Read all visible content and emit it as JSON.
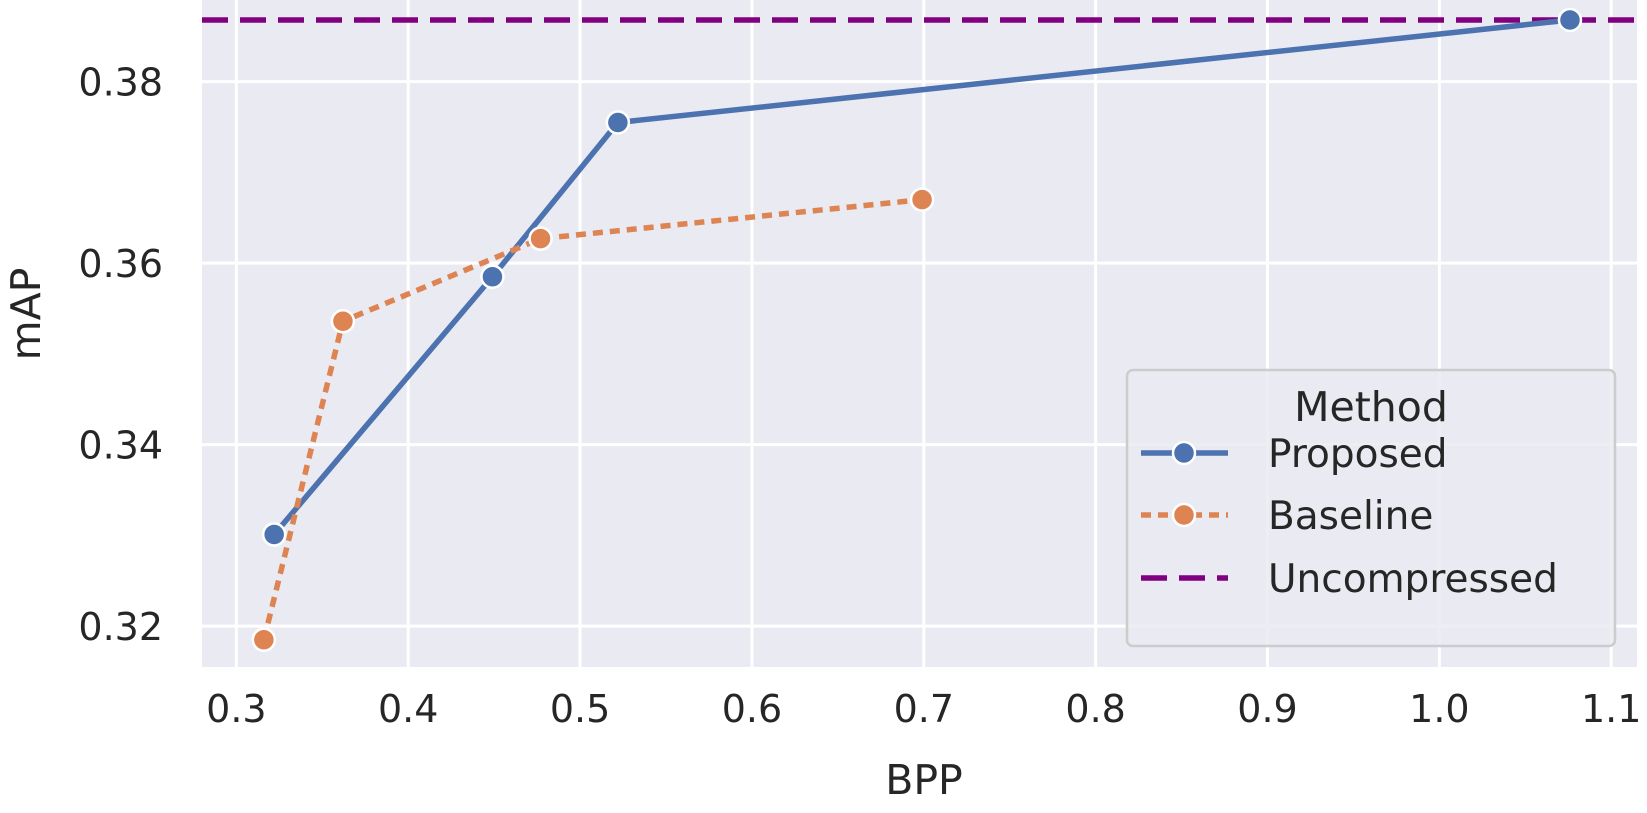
{
  "chart_data": {
    "type": "line",
    "title": "",
    "xlabel": "BPP",
    "ylabel": "mAP",
    "xlim": [
      0.28,
      1.115
    ],
    "ylim": [
      0.3155,
      0.389
    ],
    "xticks": [
      0.3,
      0.4,
      0.5,
      0.6,
      0.7,
      0.8,
      0.9,
      1.0,
      1.1
    ],
    "xtick_labels": [
      "0.3",
      "0.4",
      "0.5",
      "0.6",
      "0.7",
      "0.8",
      "0.9",
      "1.0",
      "1.1"
    ],
    "yticks": [
      0.32,
      0.34,
      0.36,
      0.38
    ],
    "ytick_labels": [
      "0.32",
      "0.34",
      "0.36",
      "0.38"
    ],
    "grid": true,
    "background": "#eaeaf2",
    "legend": {
      "title": "Method",
      "placement": "lower-right",
      "entries": [
        "Proposed",
        "Baseline",
        "Uncompressed"
      ]
    },
    "series": [
      {
        "name": "Proposed",
        "style": "solid",
        "marker": "circle",
        "color": "#4c72b0",
        "x": [
          0.322,
          0.449,
          0.522,
          1.076
        ],
        "y": [
          0.3301,
          0.3585,
          0.3755,
          0.3868
        ]
      },
      {
        "name": "Baseline",
        "style": "dotted",
        "marker": "circle",
        "color": "#dd8452",
        "x": [
          0.316,
          0.362,
          0.477,
          0.699
        ],
        "y": [
          0.3185,
          0.3536,
          0.3627,
          0.367
        ]
      },
      {
        "name": "Uncompressed",
        "style": "dashed",
        "marker": "none",
        "color": "#800080",
        "type": "hline",
        "y": 0.3868
      }
    ]
  }
}
